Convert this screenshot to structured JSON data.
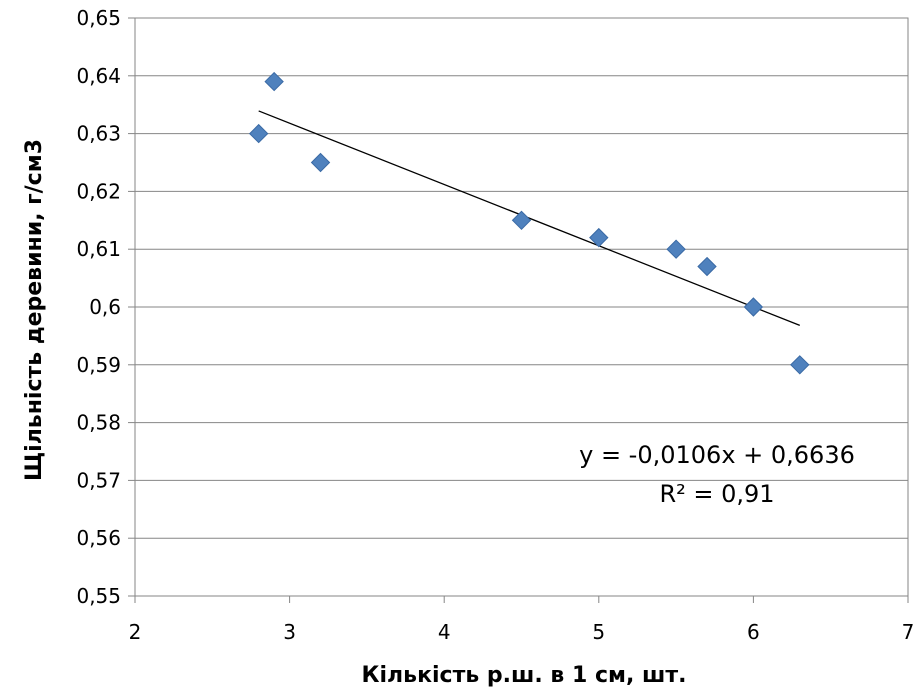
{
  "chart_data": {
    "type": "scatter",
    "title": "",
    "xlabel": "Кількість р.ш. в 1 см, шт.",
    "ylabel": "Щільність деревини, г/см3",
    "xlim": [
      2,
      7
    ],
    "ylim": [
      0.55,
      0.65
    ],
    "x_ticks": [
      2,
      3,
      4,
      5,
      6,
      7
    ],
    "x_tick_labels": [
      "2",
      "3",
      "4",
      "5",
      "6",
      "7"
    ],
    "y_ticks": [
      0.55,
      0.56,
      0.57,
      0.58,
      0.59,
      0.6,
      0.61,
      0.62,
      0.63,
      0.64,
      0.65
    ],
    "y_tick_labels": [
      "0,55",
      "0,56",
      "0,57",
      "0,58",
      "0,59",
      "0,6",
      "0,61",
      "0,62",
      "0,63",
      "0,64",
      "0,65"
    ],
    "grid": "horizontal",
    "marker": "diamond",
    "series": [
      {
        "x": [
          2.8,
          2.9,
          3.2,
          4.5,
          5.0,
          5.5,
          5.7,
          6.0,
          6.3
        ],
        "y": [
          0.63,
          0.639,
          0.625,
          0.615,
          0.612,
          0.61,
          0.607,
          0.6,
          0.59
        ],
        "color": "#4f81bd"
      }
    ],
    "trendline": {
      "type": "linear",
      "slope": -0.0106,
      "intercept": 0.6636,
      "x_range": [
        2.8,
        6.3
      ],
      "color": "#000000",
      "equation_label": "y = -0,0106x + 0,6636",
      "r2_label": "R² = 0,91"
    }
  }
}
